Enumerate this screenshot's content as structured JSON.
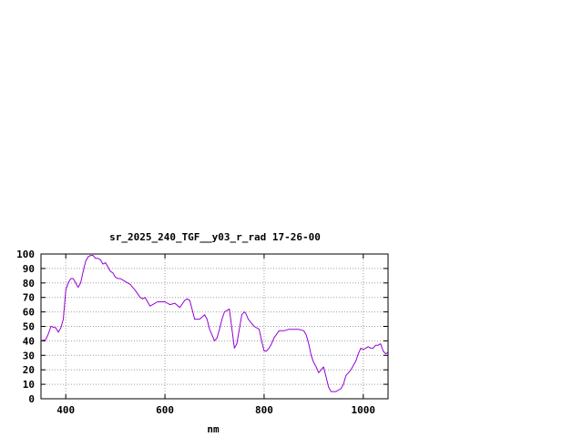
{
  "chart_data": {
    "type": "line",
    "title": "sr_2025_240_TGF__y03_r_rad 17-26-00",
    "xlabel": "nm",
    "ylabel": "",
    "xlim": [
      350,
      1050
    ],
    "ylim": [
      0,
      100
    ],
    "x_ticks": [
      400,
      600,
      800,
      1000
    ],
    "y_ticks": [
      0,
      10,
      20,
      30,
      40,
      50,
      60,
      70,
      80,
      90,
      100
    ],
    "grid": true,
    "line_color": "#9400d3",
    "series": [
      {
        "x": [
          350,
          360,
          365,
          370,
          380,
          385,
          390,
          395,
          400,
          405,
          410,
          415,
          420,
          425,
          430,
          435,
          440,
          445,
          450,
          455,
          460,
          465,
          470,
          475,
          480,
          485,
          490,
          495,
          500,
          505,
          510,
          515,
          520,
          530,
          540,
          550,
          555,
          560,
          570,
          580,
          585,
          590,
          600,
          610,
          620,
          630,
          640,
          645,
          650,
          660,
          670,
          680,
          685,
          690,
          700,
          705,
          710,
          715,
          720,
          730,
          740,
          745,
          750,
          755,
          760,
          763,
          768,
          775,
          780,
          790,
          795,
          800,
          805,
          810,
          815,
          820,
          830,
          840,
          850,
          860,
          870,
          880,
          885,
          890,
          895,
          900,
          905,
          910,
          915,
          920,
          925,
          930,
          935,
          940,
          945,
          950,
          955,
          960,
          965,
          970,
          975,
          980,
          985,
          990,
          995,
          1000,
          1005,
          1010,
          1015,
          1020,
          1025,
          1030,
          1035,
          1040,
          1045,
          1050
        ],
        "y": [
          40,
          41,
          45,
          50,
          49,
          46,
          49,
          55,
          75,
          80,
          83,
          83,
          80,
          77,
          80,
          88,
          95,
          98,
          99,
          99,
          97,
          97,
          96,
          93,
          94,
          91,
          88,
          87,
          84,
          83,
          83,
          82,
          81,
          79,
          75,
          70,
          69,
          70,
          64,
          66,
          67,
          67,
          67,
          65,
          66,
          63,
          68,
          69,
          68,
          55,
          55,
          58,
          55,
          48,
          40,
          42,
          48,
          55,
          60,
          62,
          35,
          38,
          48,
          58,
          60,
          59,
          55,
          52,
          50,
          48,
          40,
          33,
          33,
          35,
          38,
          42,
          47,
          47,
          48,
          48,
          48,
          47,
          44,
          38,
          30,
          25,
          22,
          18,
          20,
          22,
          15,
          8,
          5,
          5,
          5,
          6,
          7,
          10,
          16,
          18,
          20,
          23,
          26,
          31,
          35,
          34,
          35,
          36,
          35,
          35,
          37,
          37,
          38,
          33,
          31,
          32
        ]
      }
    ]
  }
}
